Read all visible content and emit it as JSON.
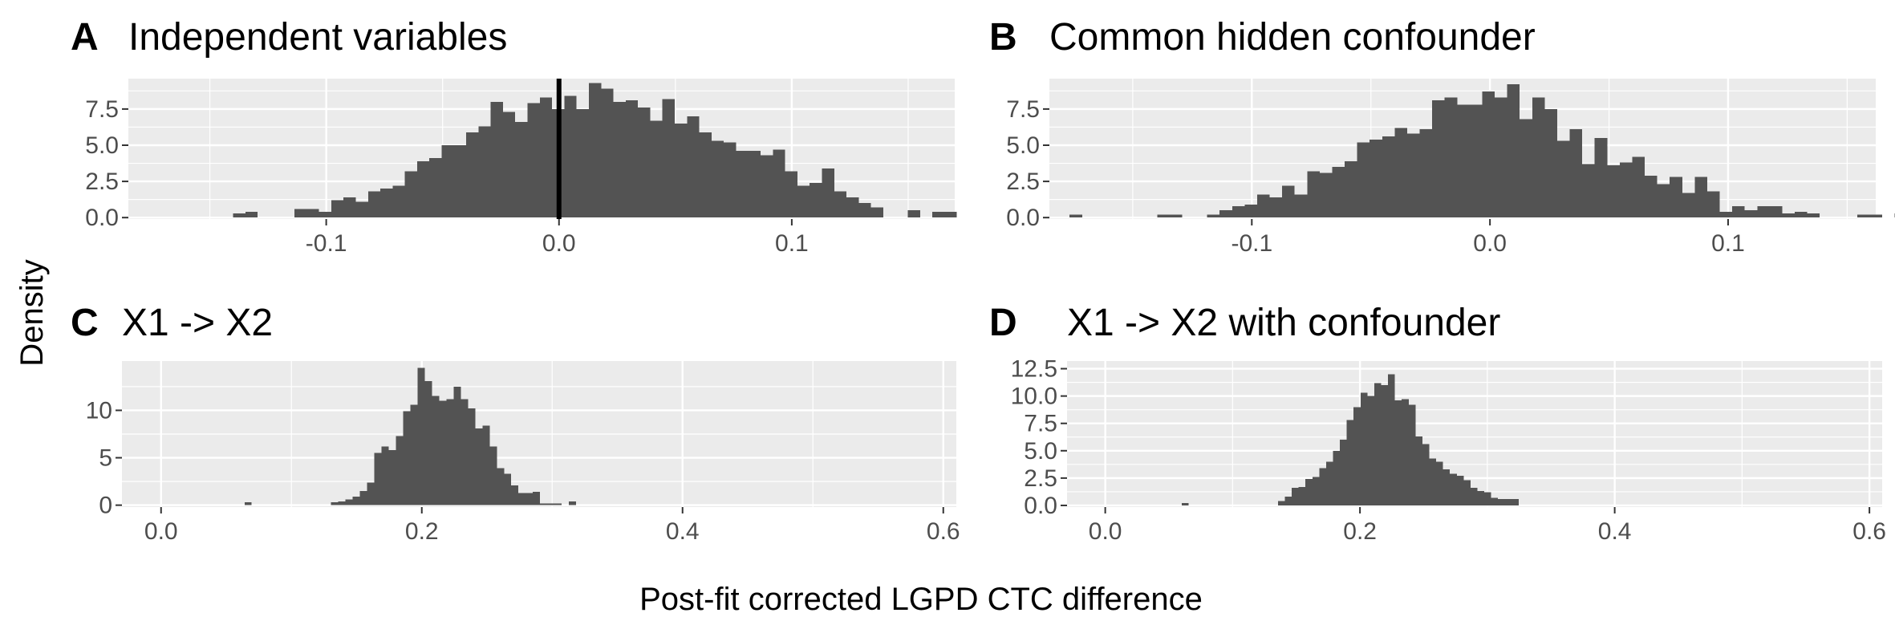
{
  "colors": {
    "panel_background": "#ebebeb",
    "grid": "#ffffff",
    "bar": "#535353",
    "reference_line": "#000000",
    "tick_text": "#4d4d4d"
  },
  "xlabel": "Post-fit corrected LGPD CTC difference",
  "ylabel": "Density",
  "chart_data": [
    {
      "type": "bar",
      "letter": "A",
      "title": "Independent variables",
      "xlim": [
        -0.185,
        0.17
      ],
      "ylim": [
        -0.1,
        9.6
      ],
      "x_ticks": [
        -0.1,
        0.0,
        0.1
      ],
      "x_tick_labels": [
        "-0.1",
        "0.0",
        "0.1"
      ],
      "y_ticks": [
        0,
        2.5,
        5,
        7.5
      ],
      "y_tick_labels": [
        "0.0",
        "2.5",
        "5.0",
        "7.5"
      ],
      "bin_start": -0.14,
      "bin_width": 0.00527,
      "values": [
        0.3,
        0.4,
        0,
        0,
        0,
        0.6,
        0.6,
        0.4,
        1.2,
        1.4,
        1.1,
        1.8,
        2.0,
        2.2,
        3.2,
        3.9,
        4.1,
        5.0,
        5.0,
        5.9,
        6.3,
        8.0,
        7.3,
        6.6,
        7.9,
        8.3,
        7.5,
        8.4,
        7.5,
        9.3,
        8.9,
        8.0,
        8.1,
        7.6,
        6.7,
        8.2,
        6.5,
        7.0,
        5.9,
        5.3,
        5.2,
        4.6,
        4.6,
        4.3,
        4.7,
        3.2,
        2.2,
        2.4,
        3.4,
        1.8,
        1.4,
        1.0,
        0.7,
        0,
        0,
        0.5,
        0,
        0.4,
        0.4,
        0
      ],
      "reference_x": 0.0
    },
    {
      "type": "bar",
      "letter": "B",
      "title": "Common hidden confounder",
      "xlim": [
        -0.185,
        0.162
      ],
      "ylim": [
        -0.1,
        9.6
      ],
      "x_ticks": [
        -0.1,
        0.0,
        0.1
      ],
      "x_tick_labels": [
        "-0.1",
        "0.0",
        "0.1"
      ],
      "y_ticks": [
        0,
        2.5,
        5,
        7.5
      ],
      "y_tick_labels": [
        "0.0",
        "2.5",
        "5.0",
        "7.5"
      ],
      "bin_start": -0.1765,
      "bin_width": 0.00525,
      "values": [
        0.2,
        0,
        0,
        0,
        0,
        0,
        0,
        0.2,
        0.2,
        0,
        0,
        0.2,
        0.5,
        0.8,
        0.9,
        1.6,
        1.4,
        2.2,
        1.6,
        3.2,
        3.1,
        3.5,
        3.9,
        5.2,
        5.4,
        5.6,
        6.2,
        5.8,
        6.1,
        8.1,
        8.3,
        7.8,
        7.8,
        8.7,
        8.3,
        9.2,
        6.8,
        8.3,
        7.5,
        5.3,
        6.1,
        3.7,
        5.5,
        3.6,
        3.8,
        4.2,
        2.9,
        2.3,
        2.8,
        1.7,
        2.8,
        1.8,
        0.4,
        0.8,
        0.5,
        0.8,
        0.8,
        0.3,
        0.4,
        0.3,
        0,
        0,
        0,
        0.2,
        0.2,
        0,
        0.3,
        0
      ]
    },
    {
      "type": "bar",
      "letter": "C",
      "title": "X1 -> X2",
      "xlim": [
        -0.03,
        0.61
      ],
      "ylim": [
        -0.2,
        15.2
      ],
      "x_ticks": [
        0.0,
        0.2,
        0.4,
        0.6
      ],
      "x_tick_labels": [
        "0.0",
        "0.2",
        "0.4",
        "0.6"
      ],
      "y_ticks": [
        0,
        5,
        10
      ],
      "y_tick_labels": [
        "0",
        "5",
        "10"
      ],
      "bin_start": 0.064,
      "bin_width": 0.00553,
      "values": [
        0.3,
        0,
        0,
        0,
        0,
        0,
        0,
        0,
        0,
        0,
        0,
        0,
        0.3,
        0.4,
        0.6,
        0.9,
        1.5,
        2.4,
        5.5,
        6.2,
        5.8,
        7.3,
        9.9,
        10.6,
        14.5,
        13.1,
        11.5,
        11.0,
        11.2,
        12.5,
        11.2,
        10.2,
        8.1,
        8.4,
        6.2,
        3.9,
        3.3,
        2.1,
        1.3,
        1.3,
        1.4,
        0.2,
        0.2,
        0.2,
        0,
        0.4
      ]
    },
    {
      "type": "bar",
      "letter": "D",
      "title": "X1 -> X2 with confounder",
      "xlim": [
        -0.03,
        0.61
      ],
      "ylim": [
        -0.15,
        13.2
      ],
      "x_ticks": [
        0.0,
        0.2,
        0.4,
        0.6
      ],
      "x_tick_labels": [
        "0.0",
        "0.2",
        "0.4",
        "0.6"
      ],
      "y_ticks": [
        0,
        2.5,
        5,
        7.5,
        10,
        12.5
      ],
      "y_tick_labels": [
        "0.0",
        "2.5",
        "5.0",
        "7.5",
        "10.0",
        "12.5"
      ],
      "bin_start": 0.06,
      "bin_width": 0.0054,
      "values": [
        0.2,
        0,
        0,
        0,
        0,
        0,
        0,
        0,
        0,
        0,
        0,
        0,
        0,
        0,
        0.4,
        0.8,
        1.6,
        1.7,
        2.4,
        2.6,
        3.4,
        4.0,
        5.0,
        6.0,
        7.8,
        9.0,
        10.3,
        10.0,
        11.2,
        11.0,
        12.0,
        9.6,
        9.7,
        9.2,
        6.3,
        5.6,
        4.3,
        4.0,
        3.3,
        2.9,
        2.7,
        2.3,
        1.6,
        1.3,
        1.2,
        0.7,
        0.6,
        0.6,
        0.6
      ]
    }
  ]
}
